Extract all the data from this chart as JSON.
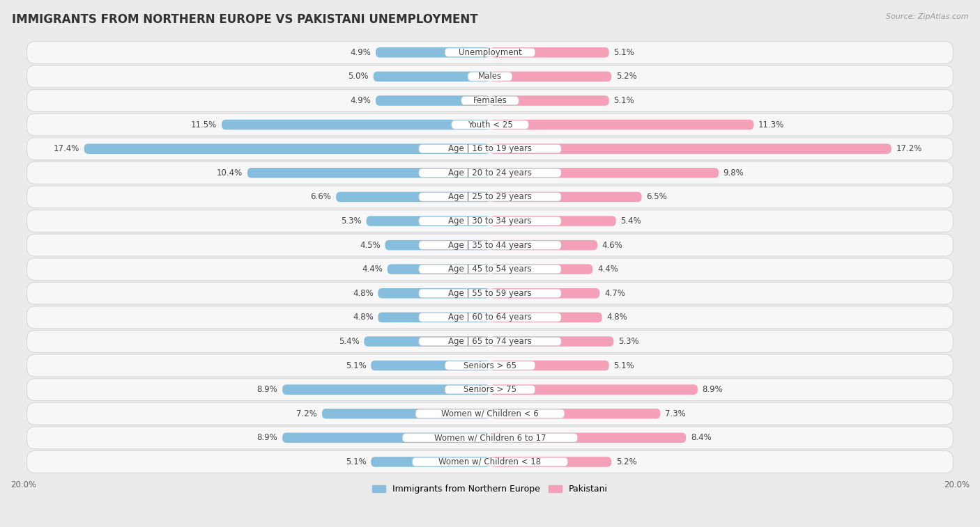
{
  "title": "IMMIGRANTS FROM NORTHERN EUROPE VS PAKISTANI UNEMPLOYMENT",
  "source": "Source: ZipAtlas.com",
  "categories": [
    "Unemployment",
    "Males",
    "Females",
    "Youth < 25",
    "Age | 16 to 19 years",
    "Age | 20 to 24 years",
    "Age | 25 to 29 years",
    "Age | 30 to 34 years",
    "Age | 35 to 44 years",
    "Age | 45 to 54 years",
    "Age | 55 to 59 years",
    "Age | 60 to 64 years",
    "Age | 65 to 74 years",
    "Seniors > 65",
    "Seniors > 75",
    "Women w/ Children < 6",
    "Women w/ Children 6 to 17",
    "Women w/ Children < 18"
  ],
  "left_values": [
    4.9,
    5.0,
    4.9,
    11.5,
    17.4,
    10.4,
    6.6,
    5.3,
    4.5,
    4.4,
    4.8,
    4.8,
    5.4,
    5.1,
    8.9,
    7.2,
    8.9,
    5.1
  ],
  "right_values": [
    5.1,
    5.2,
    5.1,
    11.3,
    17.2,
    9.8,
    6.5,
    5.4,
    4.6,
    4.4,
    4.7,
    4.8,
    5.3,
    5.1,
    8.9,
    7.3,
    8.4,
    5.2
  ],
  "left_color": "#87BEDE",
  "right_color": "#F4A0B8",
  "left_label": "Immigrants from Northern Europe",
  "right_label": "Pakistani",
  "xlim": 20.0,
  "bg_color": "#EBEBEB",
  "row_bg_color": "#F7F7F7",
  "row_border_color": "#D8D8D8",
  "label_bg_color": "#FFFFFF",
  "title_fontsize": 12,
  "cat_fontsize": 8.5,
  "value_fontsize": 8.5,
  "source_fontsize": 8,
  "legend_fontsize": 9
}
